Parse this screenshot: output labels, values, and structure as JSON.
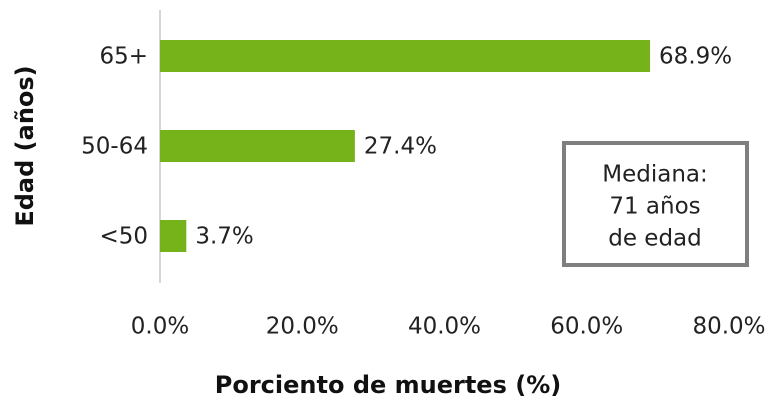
{
  "chart_data": {
    "type": "hbar",
    "categories": [
      "65+",
      "50-64",
      "<50"
    ],
    "values": [
      68.9,
      27.4,
      3.7
    ],
    "value_labels": [
      "68.9%",
      "27.4%",
      "3.7%"
    ],
    "color": "#76b21a",
    "xlim": [
      0,
      80
    ],
    "xticks": [
      {
        "value": 0,
        "label": "0.0%"
      },
      {
        "value": 20,
        "label": "20.0%"
      },
      {
        "value": 40,
        "label": "40.0%"
      },
      {
        "value": 60,
        "label": "60.0%"
      },
      {
        "value": 80,
        "label": "80.0%"
      }
    ],
    "xlabel": "Porciento de muertes (%)",
    "ylabel": "Edad (años)",
    "annotation": [
      "Mediana:",
      "71 años",
      "de edad"
    ],
    "grid": false
  }
}
